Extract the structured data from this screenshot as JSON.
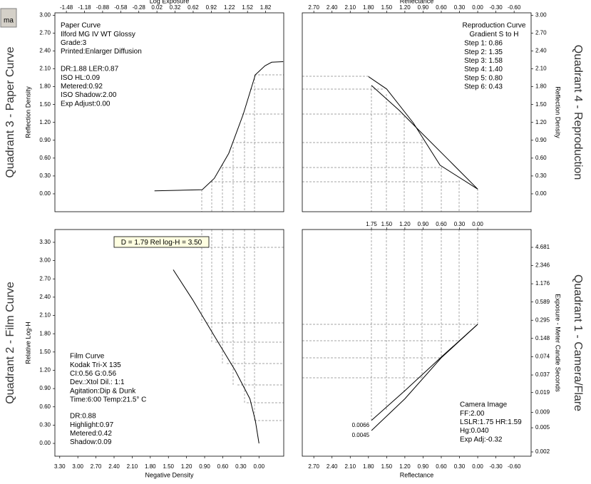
{
  "ui": {
    "button": "ma"
  },
  "chart_data": [
    {
      "type": "line",
      "title": "Quadrant 3 - Paper Curve",
      "xlabel": "Log Exposure",
      "ylabel": "Reflection Density",
      "xlim": [
        -1.67,
        2.12
      ],
      "ylim": [
        -0.3,
        3.04
      ],
      "xticks": [
        -1.48,
        -1.18,
        -0.88,
        -0.58,
        -0.28,
        0.02,
        0.32,
        0.62,
        0.92,
        1.22,
        1.52,
        1.82
      ],
      "yticks": [
        {
          "value": 3,
          "label": "3.00"
        },
        {
          "value": 2.7,
          "label": "2.70"
        },
        {
          "value": 2.4,
          "label": "2.40"
        },
        {
          "value": 2.1,
          "label": "2.10"
        },
        {
          "value": 1.8,
          "label": "1.80"
        },
        {
          "value": 1.5,
          "label": "1.50"
        },
        {
          "value": 1.2,
          "label": "1.20"
        },
        {
          "value": 0.9,
          "label": "0.90"
        },
        {
          "value": 0.6,
          "label": "0.60"
        },
        {
          "value": 0.3,
          "label": "0.30"
        },
        {
          "value": 0,
          "label": "0.00"
        }
      ],
      "series": [
        {
          "color": "#000000",
          "x": [
            -0.02,
            0.77,
            0.97,
            1.21,
            1.45,
            1.65,
            1.81,
            1.92,
            2.11
          ],
          "values": [
            0.05,
            0.07,
            0.26,
            0.68,
            1.34,
            2.0,
            2.15,
            2.21,
            2.22
          ]
        }
      ],
      "annotations": [
        [
          "Paper Curve",
          "Ilford MG IV WT  Glossy",
          "Grade:3",
          "Printed:Enlarger Diffusion"
        ],
        [
          "DR:1.88  LER:0.87",
          "ISO HL:0.09",
          "Metered:0.92",
          "ISO Shadow:2.00",
          "Exp Adjust:0.00"
        ]
      ]
    },
    {
      "type": "line",
      "title": "Quadrant 4 - Reproduction",
      "xlabel": "Reflectance",
      "ylabel": "Reflection Density",
      "xlim": [
        2.89,
        -0.88
      ],
      "ylim": [
        -0.3,
        3.04
      ],
      "xticks": [
        {
          "value": 2.7,
          "label": "2.70"
        },
        {
          "value": 2.4,
          "label": "2.40"
        },
        {
          "value": 2.1,
          "label": "2.10"
        },
        {
          "value": 1.8,
          "label": "1.80"
        },
        {
          "value": 1.5,
          "label": "1.50"
        },
        {
          "value": 1.2,
          "label": "1.20"
        },
        {
          "value": 0.9,
          "label": "0.90"
        },
        {
          "value": 0.6,
          "label": "0.60"
        },
        {
          "value": 0.3,
          "label": "0.30"
        },
        {
          "value": 0,
          "label": "0.00"
        },
        {
          "value": -0.3,
          "label": "-0.30"
        },
        {
          "value": -0.6,
          "label": "-0.60"
        }
      ],
      "yticks": [
        {
          "value": 3,
          "label": "3.00"
        },
        {
          "value": 2.7,
          "label": "2.70"
        },
        {
          "value": 2.4,
          "label": "2.40"
        },
        {
          "value": 2.1,
          "label": "2.10"
        },
        {
          "value": 1.8,
          "label": "1.80"
        },
        {
          "value": 1.5,
          "label": "1.50"
        },
        {
          "value": 1.2,
          "label": "1.20"
        },
        {
          "value": 0.9,
          "label": "0.90"
        },
        {
          "value": 0.6,
          "label": "0.60"
        },
        {
          "value": 0.3,
          "label": "0.30"
        },
        {
          "value": 0,
          "label": "0.00"
        }
      ],
      "series": [
        {
          "color": "#000000",
          "x": [
            1.8,
            1.5,
            1.06,
            0.62,
            0.0
          ],
          "values": [
            1.97,
            1.76,
            1.19,
            0.48,
            0.08
          ]
        },
        {
          "color": "#000000",
          "x": [
            1.75,
            1.29,
            0.94,
            0.47,
            0.0
          ],
          "values": [
            1.82,
            1.4,
            1.04,
            0.56,
            0.08
          ]
        }
      ],
      "annotations": [
        [
          "Reproduction Curve",
          "Gradient S to H"
        ],
        [
          "Step 1: 0.86",
          "Step 2: 1.35",
          "Step 3: 1.58",
          "Step 4: 1.40",
          "Step 5: 0.80",
          "Step 6: 0.43"
        ]
      ]
    },
    {
      "type": "line",
      "title": "Quadrant 2 - Film Curve",
      "xlabel": "Negative Density",
      "ylabel": "Relative Log-H",
      "xlim": [
        3.38,
        -0.41
      ],
      "ylim": [
        -0.21,
        3.51
      ],
      "xticks": [
        {
          "value": 3.3,
          "label": "3.30"
        },
        {
          "value": 3,
          "label": "3.00"
        },
        {
          "value": 2.7,
          "label": "2.70"
        },
        {
          "value": 2.4,
          "label": "2.40"
        },
        {
          "value": 2.1,
          "label": "2.10"
        },
        {
          "value": 1.8,
          "label": "1.80"
        },
        {
          "value": 1.5,
          "label": "1.50"
        },
        {
          "value": 1.2,
          "label": "1.20"
        },
        {
          "value": 0.9,
          "label": "0.90"
        },
        {
          "value": 0.6,
          "label": "0.60"
        },
        {
          "value": 0.3,
          "label": "0.30"
        },
        {
          "value": 0,
          "label": "0.00"
        }
      ],
      "yticks": [
        {
          "value": 3.3,
          "label": "3.30"
        },
        {
          "value": 3,
          "label": "3.00"
        },
        {
          "value": 2.7,
          "label": "2.70"
        },
        {
          "value": 2.4,
          "label": "2.40"
        },
        {
          "value": 2.1,
          "label": "2.10"
        },
        {
          "value": 1.8,
          "label": "1.80"
        },
        {
          "value": 1.5,
          "label": "1.50"
        },
        {
          "value": 1.2,
          "label": "1.20"
        },
        {
          "value": 0.9,
          "label": "0.90"
        },
        {
          "value": 0.6,
          "label": "0.60"
        },
        {
          "value": 0.3,
          "label": "0.30"
        },
        {
          "value": 0,
          "label": "0.00"
        }
      ],
      "series": [
        {
          "color": "#000000",
          "x": [
            1.42,
            1.1,
            0.75,
            0.39,
            0.15,
            0.06,
            0.0
          ],
          "values": [
            2.85,
            2.36,
            1.78,
            1.19,
            0.73,
            0.37,
            0.0
          ]
        }
      ],
      "callout": "D = 1.79  Rel log-H = 3.50",
      "annotations": [
        [
          "Film Curve",
          "Kodak Tri-X 135",
          "CI:0.56  G:0.56",
          "Dev.:Xtol  Dil.: 1:1",
          "Agitation:Dip & Dunk",
          "Time:6:00  Temp:21.5° C"
        ],
        [
          "DR:0.88",
          "Highlight:0.97",
          "Metered:0.42",
          "Shadow:0.09"
        ]
      ]
    },
    {
      "type": "line",
      "title": "Quadrant 1 - Camera/Flare",
      "xlabel": "Reflectance",
      "ylabel": "Exposure - Meter Candle Seconds",
      "xlim": [
        2.89,
        -0.88
      ],
      "ylim": [
        0.0017,
        9.2
      ],
      "ylog": true,
      "xticks": [
        {
          "value": 2.7,
          "label": "2.70"
        },
        {
          "value": 2.4,
          "label": "2.40"
        },
        {
          "value": 2.1,
          "label": "2.10"
        },
        {
          "value": 1.8,
          "label": "1.80"
        },
        {
          "value": 1.5,
          "label": "1.50"
        },
        {
          "value": 1.2,
          "label": "1.20"
        },
        {
          "value": 0.9,
          "label": "0.90"
        },
        {
          "value": 0.6,
          "label": "0.60"
        },
        {
          "value": 0.3,
          "label": "0.30"
        },
        {
          "value": 0,
          "label": "0.00"
        },
        {
          "value": -0.3,
          "label": "-0.30"
        },
        {
          "value": -0.6,
          "label": "-0.60"
        }
      ],
      "x2ticks": [
        1.75,
        {
          "value": 1.5,
          "label": "1.50"
        },
        {
          "value": 1.2,
          "label": "1.20"
        },
        {
          "value": 0.9,
          "label": "0.90"
        },
        {
          "value": 0.6,
          "label": "0.60"
        },
        {
          "value": 0.3,
          "label": "0.30"
        },
        {
          "value": 0,
          "label": "0.00"
        }
      ],
      "yticks": [
        4.681,
        2.346,
        1.176,
        0.589,
        0.295,
        0.148,
        0.074,
        0.037,
        0.019,
        0.009,
        0.005,
        0.002
      ],
      "series": [
        {
          "color": "#000000",
          "x": [
            1.75,
            1.2,
            0.6,
            0.0
          ],
          "values": [
            0.0066,
            0.0204,
            0.073,
            0.253
          ]
        },
        {
          "color": "#000000",
          "x": [
            1.75,
            1.2,
            0.6,
            0.0
          ],
          "values": [
            0.0045,
            0.015,
            0.071,
            0.253
          ]
        }
      ],
      "annotations": [
        [
          "Camera Image",
          "FF:2.00",
          "LSLR:1.75 HR:1.59",
          "Hg:0.040",
          "Exp Adj:-0.32"
        ]
      ]
    }
  ]
}
